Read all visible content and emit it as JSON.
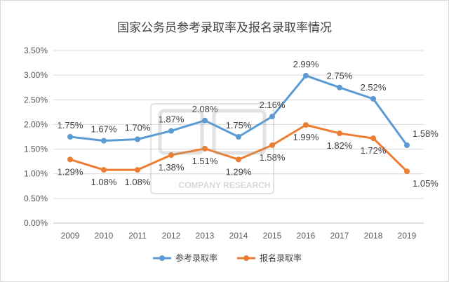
{
  "chart_data": {
    "type": "line",
    "title": "国家公务员参考录取率及报名录取率情况",
    "categories": [
      "2009",
      "2010",
      "2011",
      "2012",
      "2013",
      "2014",
      "2015",
      "2016",
      "2017",
      "2018",
      "2019"
    ],
    "series": [
      {
        "name": "参考录取率",
        "color": "#5b9bd5",
        "values": [
          1.75,
          1.67,
          1.7,
          1.87,
          2.08,
          1.75,
          2.16,
          2.99,
          2.75,
          2.52,
          1.58
        ],
        "labels": [
          "1.75%",
          "1.67%",
          "1.70%",
          "1.87%",
          "2.08%",
          "1.75%",
          "2.16%",
          "2.99%",
          "2.75%",
          "2.52%",
          "1.58%"
        ]
      },
      {
        "name": "报名录取率",
        "color": "#ed7d31",
        "values": [
          1.29,
          1.08,
          1.08,
          1.38,
          1.51,
          1.29,
          1.58,
          1.99,
          1.82,
          1.72,
          1.05
        ],
        "labels": [
          "1.29%",
          "1.08%",
          "1.08%",
          "1.38%",
          "1.51%",
          "1.29%",
          "1.58%",
          "1.99%",
          "1.82%",
          "1.72%",
          "1.05%"
        ]
      }
    ],
    "ylim": [
      0,
      3.5
    ],
    "yticks": [
      "0.00%",
      "0.50%",
      "1.00%",
      "1.50%",
      "2.00%",
      "2.50%",
      "3.00%",
      "3.50%"
    ],
    "grid": true,
    "legend": "bottom-center",
    "watermark": "COMPANY RESEARCH"
  }
}
